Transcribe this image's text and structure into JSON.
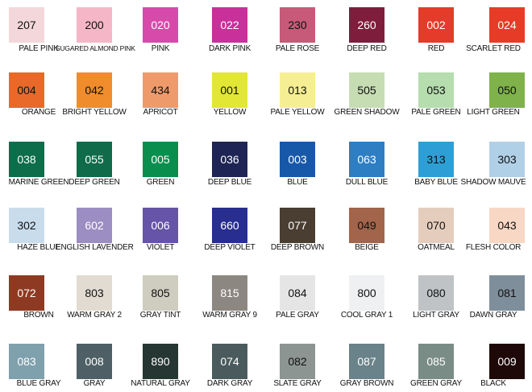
{
  "rows": [
    [
      {
        "code": "207",
        "name": "PALE PINK",
        "color": "#F3D7DA",
        "text": "#111"
      },
      {
        "code": "200",
        "name": "SUGARED ALMOND PINK",
        "color": "#F5B7C8",
        "text": "#111"
      },
      {
        "code": "020",
        "name": "PINK",
        "color": "#D84AAA",
        "text": "#fff"
      },
      {
        "code": "022",
        "name": "DARK PINK",
        "color": "#C9309A",
        "text": "#fff"
      },
      {
        "code": "230",
        "name": "PALE ROSE",
        "color": "#C65A78",
        "text": "#111"
      },
      {
        "code": "260",
        "name": "DEEP RED",
        "color": "#7F1D3C",
        "text": "#fff"
      },
      {
        "code": "002",
        "name": "RED",
        "color": "#E53B2A",
        "text": "#fff"
      },
      {
        "code": "024",
        "name": "SCARLET RED",
        "color": "#E63C27",
        "text": "#fff"
      }
    ],
    [
      {
        "code": "004",
        "name": "ORANGE",
        "color": "#E8692A",
        "text": "#111"
      },
      {
        "code": "042",
        "name": "BRIGHT YELLOW",
        "color": "#F08C2B",
        "text": "#111"
      },
      {
        "code": "434",
        "name": "APRICOT",
        "color": "#EE9A6B",
        "text": "#111"
      },
      {
        "code": "001",
        "name": "YELLOW",
        "color": "#E2E635",
        "text": "#111"
      },
      {
        "code": "013",
        "name": "PALE YELLOW",
        "color": "#F6EE93",
        "text": "#111"
      },
      {
        "code": "505",
        "name": "GREEN SHADOW",
        "color": "#C6DDB3",
        "text": "#111"
      },
      {
        "code": "053",
        "name": "PALE GREEN",
        "color": "#B5DDAE",
        "text": "#111"
      },
      {
        "code": "050",
        "name": "LIGHT GREEN",
        "color": "#7FB24A",
        "text": "#111"
      }
    ],
    [
      {
        "code": "038",
        "name": "MARINE GREEN",
        "color": "#0E6D4B",
        "text": "#fff"
      },
      {
        "code": "055",
        "name": "DEEP GREEN",
        "color": "#0F6B4A",
        "text": "#fff"
      },
      {
        "code": "005",
        "name": "GREEN",
        "color": "#0A8E4E",
        "text": "#fff"
      },
      {
        "code": "036",
        "name": "DEEP BLUE",
        "color": "#1E2453",
        "text": "#fff"
      },
      {
        "code": "003",
        "name": "BLUE",
        "color": "#1858A9",
        "text": "#fff"
      },
      {
        "code": "063",
        "name": "DULL BLUE",
        "color": "#2D7EC3",
        "text": "#fff"
      },
      {
        "code": "313",
        "name": "BABY BLUE",
        "color": "#2E9FD5",
        "text": "#111"
      },
      {
        "code": "303",
        "name": "SHADOW MAUVE",
        "color": "#AFD0E7",
        "text": "#111"
      }
    ],
    [
      {
        "code": "302",
        "name": "HAZE BLUE",
        "color": "#C8DCEC",
        "text": "#111"
      },
      {
        "code": "602",
        "name": "ENGLISH LAVENDER",
        "color": "#9C8EC2",
        "text": "#fff"
      },
      {
        "code": "006",
        "name": "VIOLET",
        "color": "#6554A8",
        "text": "#fff"
      },
      {
        "code": "660",
        "name": "DEEP VIOLET",
        "color": "#272E8F",
        "text": "#fff"
      },
      {
        "code": "077",
        "name": "DEEP BROWN",
        "color": "#4A3D31",
        "text": "#fff"
      },
      {
        "code": "049",
        "name": "BEIGE",
        "color": "#A2644B",
        "text": "#111"
      },
      {
        "code": "070",
        "name": "OATMEAL",
        "color": "#E5CDBD",
        "text": "#111"
      },
      {
        "code": "043",
        "name": "FLESH COLOR",
        "color": "#F8D7C4",
        "text": "#111"
      }
    ],
    [
      {
        "code": "072",
        "name": "BROWN",
        "color": "#8E3A22",
        "text": "#fff"
      },
      {
        "code": "803",
        "name": "WARM GRAY 2",
        "color": "#E1DBD1",
        "text": "#111"
      },
      {
        "code": "805",
        "name": "GRAY TINT",
        "color": "#CFCCC0",
        "text": "#111"
      },
      {
        "code": "815",
        "name": "WARM GRAY 9",
        "color": "#8C8780",
        "text": "#fff"
      },
      {
        "code": "084",
        "name": "PALE GRAY",
        "color": "#E5E5E5",
        "text": "#111"
      },
      {
        "code": "800",
        "name": "COOL GRAY 1",
        "color": "#EEF0F2",
        "text": "#111"
      },
      {
        "code": "080",
        "name": "LIGHT GRAY",
        "color": "#BFC3C6",
        "text": "#111"
      },
      {
        "code": "081",
        "name": "DAWN GRAY",
        "color": "#7F8E9B",
        "text": "#111"
      }
    ],
    [
      {
        "code": "083",
        "name": "BLUE GRAY",
        "color": "#7FA0AD",
        "text": "#fff"
      },
      {
        "code": "008",
        "name": "GRAY",
        "color": "#4E6066",
        "text": "#fff"
      },
      {
        "code": "890",
        "name": "NATURAL GRAY",
        "color": "#263632",
        "text": "#fff"
      },
      {
        "code": "074",
        "name": "DARK GRAY",
        "color": "#4B5B5D",
        "text": "#fff"
      },
      {
        "code": "082",
        "name": "SLATE GRAY",
        "color": "#8C9592",
        "text": "#111"
      },
      {
        "code": "087",
        "name": "GRAY BROWN",
        "color": "#6A8289",
        "text": "#fff"
      },
      {
        "code": "085",
        "name": "GREEN GRAY",
        "color": "#7A8C86",
        "text": "#fff"
      },
      {
        "code": "009",
        "name": "BLACK",
        "color": "#1E0808",
        "text": "#fff"
      }
    ]
  ]
}
